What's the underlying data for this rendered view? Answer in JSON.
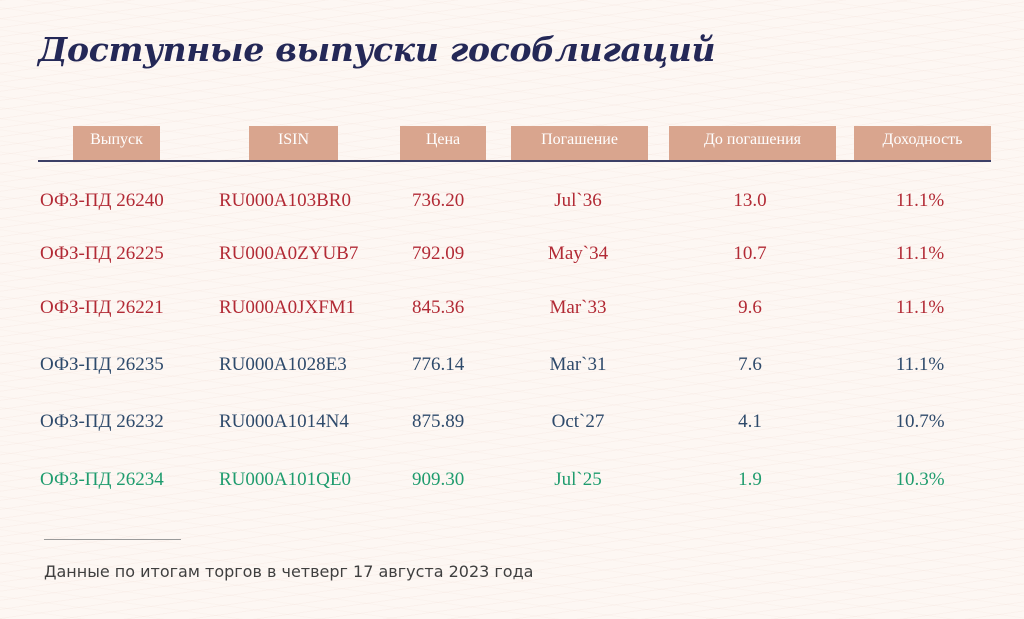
{
  "title": "Доступные выпуски гособлигаций",
  "columns": [
    "Выпуск",
    "ISIN",
    "Цена",
    "Погашение",
    "До погашения",
    "Доходность"
  ],
  "colors": {
    "header_pill": "#d9a58e",
    "title": "#242857",
    "red": "#b22a35",
    "blue": "#2e4a6b",
    "green": "#1f9c6e"
  },
  "rows": [
    {
      "issue": "ОФЗ-ПД 26240",
      "isin": "RU000A103BR0",
      "price": "736.20",
      "maturity": "Jul`36",
      "years_to_maturity": "13.0",
      "yield": "11.1%",
      "color": "red"
    },
    {
      "issue": "ОФЗ-ПД 26225",
      "isin": "RU000A0ZYUB7",
      "price": "792.09",
      "maturity": "May`34",
      "years_to_maturity": "10.7",
      "yield": "11.1%",
      "color": "red"
    },
    {
      "issue": "ОФЗ-ПД 26221",
      "isin": "RU000A0JXFM1",
      "price": "845.36",
      "maturity": "Mar`33",
      "years_to_maturity": "9.6",
      "yield": "11.1%",
      "color": "red"
    },
    {
      "issue": "ОФЗ-ПД 26235",
      "isin": "RU000A1028E3",
      "price": "776.14",
      "maturity": "Mar`31",
      "years_to_maturity": "7.6",
      "yield": "11.1%",
      "color": "blue"
    },
    {
      "issue": "ОФЗ-ПД 26232",
      "isin": "RU000A1014N4",
      "price": "875.89",
      "maturity": "Oct`27",
      "years_to_maturity": "4.1",
      "yield": "10.7%",
      "color": "blue"
    },
    {
      "issue": "ОФЗ-ПД 26234",
      "isin": "RU000A101QE0",
      "price": "909.30",
      "maturity": "Jul`25",
      "years_to_maturity": "1.9",
      "yield": "10.3%",
      "color": "green"
    }
  ],
  "footnote": "Данные по итогам торгов в четверг 17 августа 2023 года"
}
